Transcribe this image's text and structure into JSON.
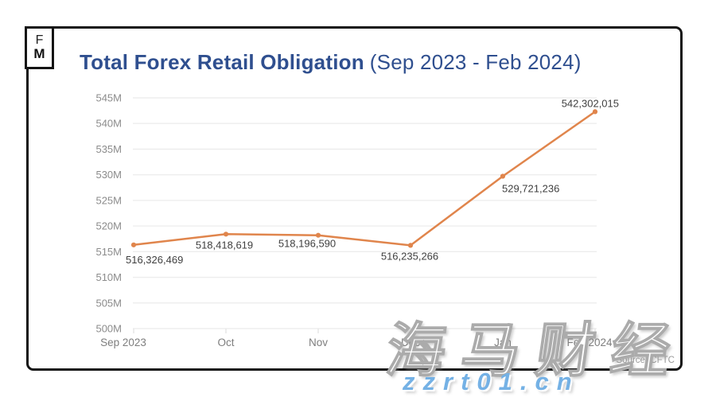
{
  "page": {
    "background": "#ffffff"
  },
  "logo": {
    "top": "F",
    "bottom": "M"
  },
  "header": {
    "title_bold": "Total Forex Retail Obligation",
    "title_range": "(Sep 2023 - Feb 2024)",
    "title_color": "#2F4F8F"
  },
  "chart_data": {
    "type": "line",
    "title": "Total Forex Retail Obligation",
    "subtitle": "(Sep 2023 - Feb 2024)",
    "categories": [
      "Sep 2023",
      "Oct",
      "Nov",
      "Dec",
      "Jan",
      "Feb 2024"
    ],
    "series": [
      {
        "name": "Total Forex Retail Obligation",
        "values": [
          516326469,
          518418619,
          518196590,
          516235266,
          529721236,
          542302015
        ]
      }
    ],
    "point_labels": [
      "516,326,469",
      "518,418,619",
      "518,196,590",
      "516,235,266",
      "529,721,236",
      "542,302,015"
    ],
    "ylim": [
      500000000,
      545000000
    ],
    "ytick_interval": 5000000,
    "ytick_labels": [
      "500M",
      "505M",
      "510M",
      "515M",
      "520M",
      "525M",
      "530M",
      "535M",
      "540M",
      "545M"
    ],
    "grid": "horizontal-only",
    "legend": "none",
    "line_color": "#E0854C",
    "gridline_color": "#ededed",
    "label_color": "#3f3f3f",
    "axis_color": "#8b8b8b"
  },
  "footer": {
    "source": "Source: CFTC"
  },
  "watermark": {
    "cjk": "海马财经",
    "url": "zzrt01.cn",
    "url_color": "#74B1E5"
  }
}
